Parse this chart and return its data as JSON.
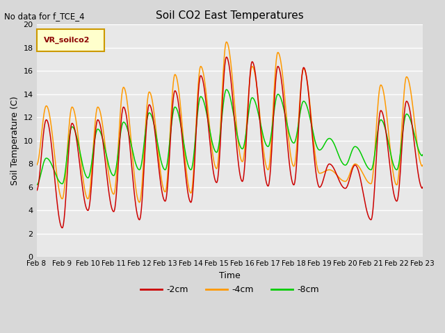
{
  "title": "Soil CO2 East Temperatures",
  "subtitle": "No data for f_TCE_4",
  "xlabel": "Time",
  "ylabel": "Soil Temperature (C)",
  "legend_label": "VR_soilco2",
  "ylim": [
    0,
    20
  ],
  "colors": {
    "2cm": "#cc0000",
    "4cm": "#ff9900",
    "8cm": "#00cc00"
  },
  "line_labels": [
    "-2cm",
    "-4cm",
    "-8cm"
  ],
  "xtick_labels": [
    "Feb 8",
    "Feb 9",
    "Feb 10",
    "Feb 11",
    "Feb 12",
    "Feb 13",
    "Feb 14",
    "Feb 15",
    "Feb 16",
    "Feb 17",
    "Feb 18",
    "Feb 19",
    "Feb 20",
    "Feb 21",
    "Feb 22",
    "Feb 23"
  ],
  "background_color": "#e8e8e8",
  "grid_color": "#ffffff",
  "figsize": [
    6.4,
    4.8
  ],
  "dpi": 100
}
